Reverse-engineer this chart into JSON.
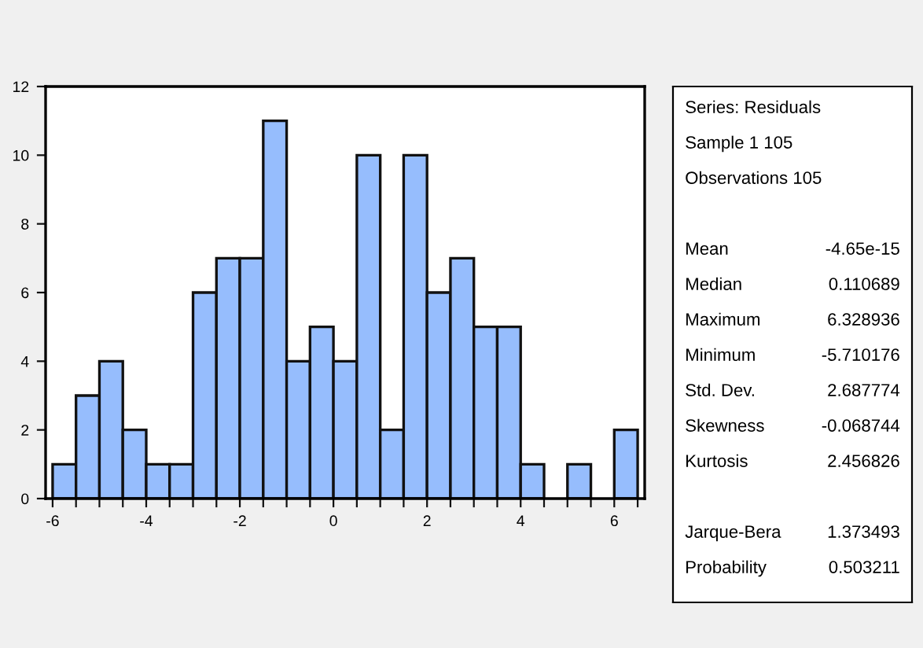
{
  "chart_data": [
    {
      "type": "histogram",
      "color": "#96bdfd",
      "bins": [
        -6,
        -5.5,
        -5,
        -4.5,
        -4,
        -3.5,
        -3,
        -2.5,
        -2,
        -1.5,
        -1,
        -0.5,
        0,
        0.5,
        1,
        1.5,
        2,
        2.5,
        3,
        3.5,
        4,
        4.5,
        5,
        5.5,
        6,
        6.5
      ],
      "values": [
        1,
        3,
        4,
        2,
        1,
        1,
        6,
        7,
        7,
        11,
        4,
        5,
        4,
        10,
        2,
        10,
        6,
        7,
        5,
        5,
        1,
        0,
        1,
        0,
        2
      ],
      "xlim": [
        -6.15,
        6.65
      ],
      "ylim": [
        0,
        12
      ],
      "xticks": [
        -6,
        {
          "value": -5.5,
          "label": null
        },
        {
          "value": -5,
          "label": null
        },
        {
          "value": -4.5,
          "label": null
        },
        -4,
        {
          "value": -3.5,
          "label": null
        },
        {
          "value": -3,
          "label": null
        },
        {
          "value": -2.5,
          "label": null
        },
        -2,
        {
          "value": -1.5,
          "label": null
        },
        {
          "value": -1,
          "label": null
        },
        {
          "value": -0.5,
          "label": null
        },
        0,
        {
          "value": 0.5,
          "label": null
        },
        {
          "value": 1,
          "label": null
        },
        {
          "value": 1.5,
          "label": null
        },
        2,
        {
          "value": 2.5,
          "label": null
        },
        {
          "value": 3,
          "label": null
        },
        {
          "value": 3.5,
          "label": null
        },
        4,
        {
          "value": 4.5,
          "label": null
        },
        {
          "value": 5,
          "label": null
        },
        {
          "value": 5.5,
          "label": null
        },
        6,
        {
          "value": 6.5,
          "label": null
        }
      ],
      "yticks": [
        0,
        2,
        4,
        6,
        8,
        10,
        12
      ],
      "grid": false
    },
    {
      "type": "other",
      "annotations": [
        "Series: Residuals",
        "Sample 1 105",
        "Observations 105",
        "Mean",
        "-4.65e-15",
        "Median",
        "0.110689",
        "Maximum",
        "6.328936",
        "Minimum",
        "-5.710176",
        "Std. Dev.",
        "2.687774",
        "Skewness",
        "-0.068744",
        "Kurtosis",
        "2.456826",
        "Jarque-Bera",
        "1.373493",
        "Probability",
        "0.503211"
      ]
    }
  ]
}
